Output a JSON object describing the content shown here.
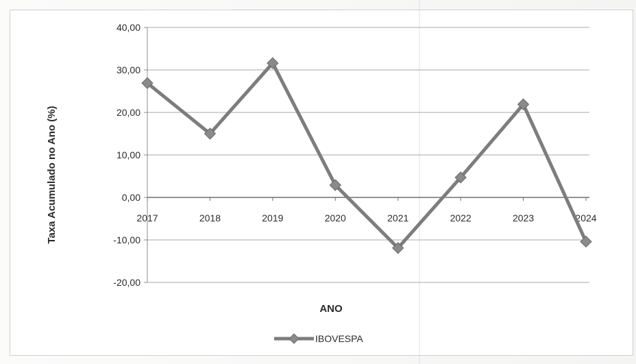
{
  "chart_data": {
    "type": "line",
    "categories": [
      "2017",
      "2018",
      "2019",
      "2020",
      "2021",
      "2022",
      "2023",
      "2024"
    ],
    "series": [
      {
        "name": "IBOVESPA",
        "values": [
          26.9,
          15.0,
          31.6,
          2.9,
          -11.9,
          4.7,
          21.9,
          -10.4
        ],
        "color": "#7d7d7d"
      }
    ],
    "y_ticks": [
      "40,00",
      "30,00",
      "20,00",
      "10,00",
      "0,00",
      "-10,00",
      "-20,00"
    ],
    "ylim": [
      -20,
      40
    ],
    "xlabel": "ANO",
    "ylabel": "Taxa Acumulado no Ano (%)",
    "grid": true,
    "legend": "bottom",
    "marker": "diamond"
  }
}
